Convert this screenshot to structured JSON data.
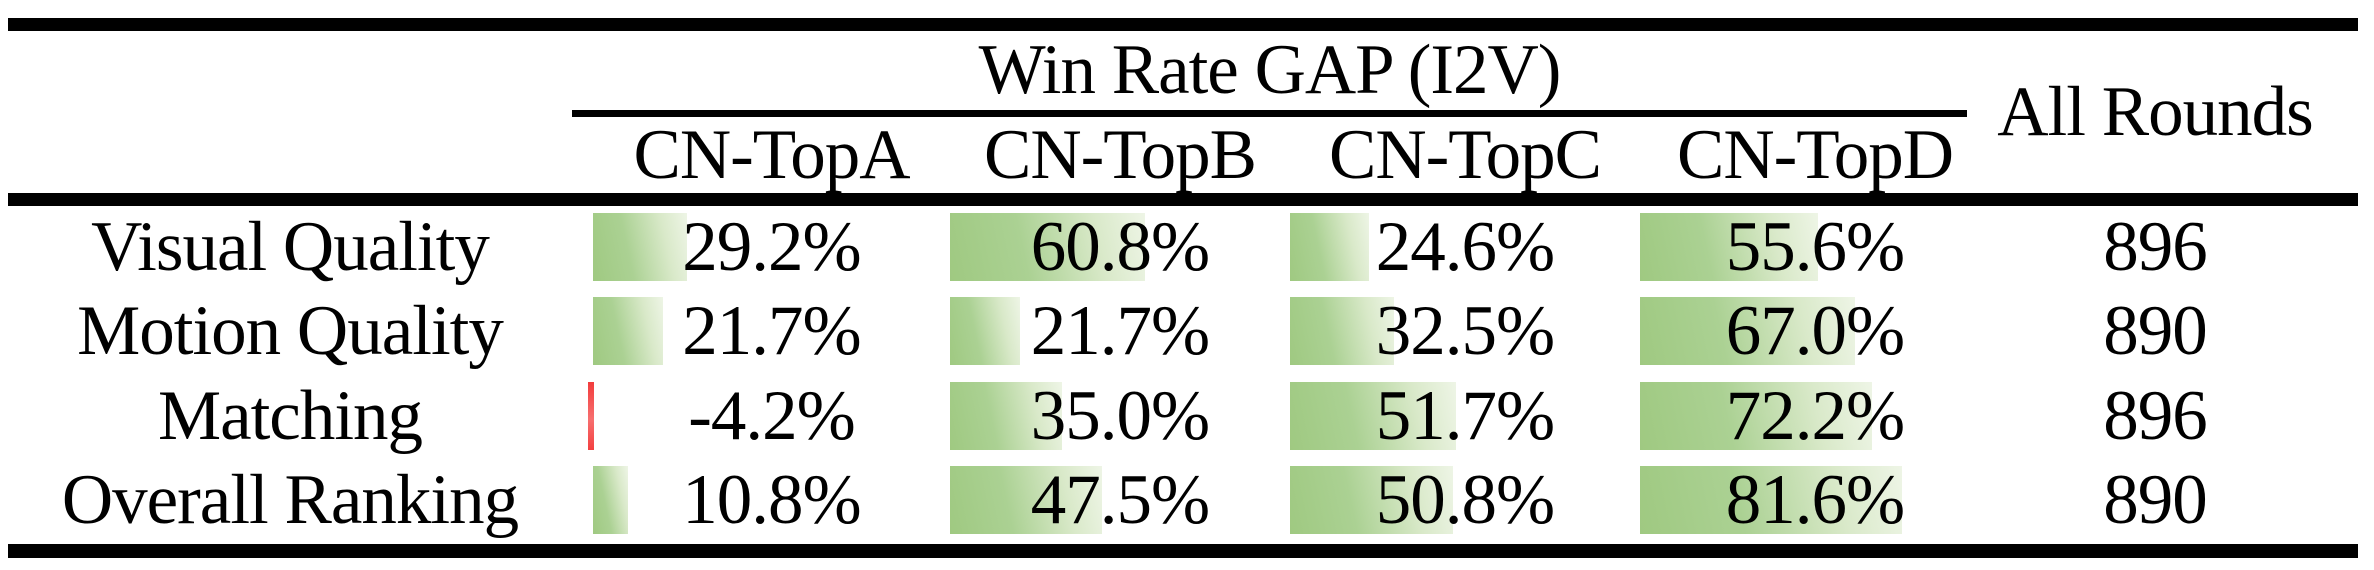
{
  "table": {
    "title": "Win Rate GAP (I2V)",
    "all_rounds_header": "All Rounds",
    "columns": [
      "CN-TopA",
      "CN-TopB",
      "CN-TopC",
      "CN-TopD"
    ],
    "rows": [
      {
        "label": "Visual Quality",
        "values": [
          "29.2%",
          "60.8%",
          "24.6%",
          "55.6%"
        ],
        "bars": [
          29.2,
          60.8,
          24.6,
          55.6
        ],
        "all_rounds": "896"
      },
      {
        "label": "Motion Quality",
        "values": [
          "21.7%",
          "21.7%",
          "32.5%",
          "67.0%"
        ],
        "bars": [
          21.7,
          21.7,
          32.5,
          67.0
        ],
        "all_rounds": "890"
      },
      {
        "label": "Matching",
        "values": [
          "-4.2%",
          "35.0%",
          "51.7%",
          "72.2%"
        ],
        "bars": [
          -4.2,
          35.0,
          51.7,
          72.2
        ],
        "all_rounds": "896"
      },
      {
        "label": "Overall Ranking",
        "values": [
          "10.8%",
          "47.5%",
          "50.8%",
          "81.6%"
        ],
        "bars": [
          10.8,
          47.5,
          50.8,
          81.6
        ],
        "all_rounds": "890"
      }
    ]
  },
  "colors": {
    "positive_bar_start": "#9fc981",
    "positive_bar_end": "#eef5e6",
    "negative_bar": "#f23c3c",
    "rule": "#000000",
    "background": "#ffffff",
    "text": "#000000"
  },
  "chart_data": {
    "type": "table",
    "title": "Win Rate GAP (I2V)",
    "row_header": [
      "Visual Quality",
      "Motion Quality",
      "Matching",
      "Overall Ranking"
    ],
    "column_header": [
      "CN-TopA",
      "CN-TopB",
      "CN-TopC",
      "CN-TopD",
      "All Rounds"
    ],
    "series": [
      {
        "name": "CN-TopA",
        "values": [
          29.2,
          21.7,
          -4.2,
          10.8
        ],
        "unit": "%"
      },
      {
        "name": "CN-TopB",
        "values": [
          60.8,
          21.7,
          35.0,
          47.5
        ],
        "unit": "%"
      },
      {
        "name": "CN-TopC",
        "values": [
          24.6,
          32.5,
          51.7,
          50.8
        ],
        "unit": "%"
      },
      {
        "name": "CN-TopD",
        "values": [
          55.6,
          67.0,
          72.2,
          81.6
        ],
        "unit": "%"
      },
      {
        "name": "All Rounds",
        "values": [
          896,
          890,
          896,
          890
        ],
        "unit": "rounds"
      }
    ],
    "notes": "Cells contain green data bars proportional to positive win-rate gap values; negative values shown with a thin red bar. Bar scale: 0-100% of cell width."
  }
}
